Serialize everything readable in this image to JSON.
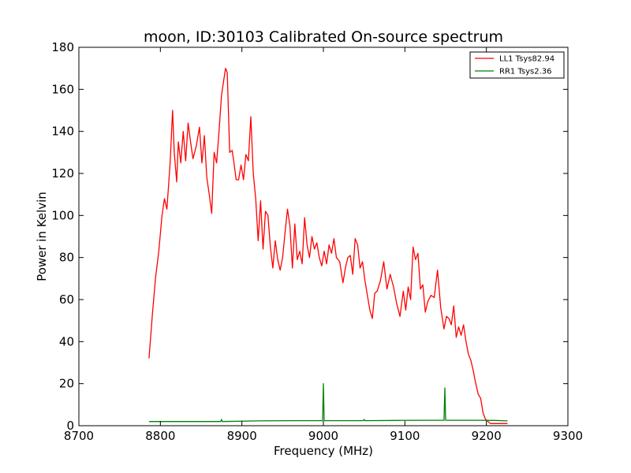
{
  "chart_data": {
    "type": "line",
    "title": "moon, ID:30103 Calibrated On-source spectrum",
    "xlabel": "Frequency (MHz)",
    "ylabel": "Power in Kelvin",
    "xlim": [
      8700,
      9300
    ],
    "ylim": [
      0,
      180
    ],
    "xticks": [
      8700,
      8800,
      8900,
      9000,
      9100,
      9200,
      9300
    ],
    "yticks": [
      0,
      20,
      40,
      60,
      80,
      100,
      120,
      140,
      160,
      180
    ],
    "grid": false,
    "legend_position": "top-right",
    "series": [
      {
        "name": "LL1 Tsys82.94",
        "color": "#ff0000",
        "x": [
          8786,
          8790,
          8794,
          8798,
          8802,
          8805,
          8808,
          8812,
          8815,
          8817,
          8820,
          8822,
          8825,
          8828,
          8831,
          8834,
          8837,
          8840,
          8844,
          8848,
          8851,
          8854,
          8857,
          8860,
          8863,
          8866,
          8869,
          8872,
          8875,
          8878,
          8880,
          8882,
          8885,
          8888,
          8890,
          8893,
          8896,
          8899,
          8902,
          8905,
          8908,
          8911,
          8914,
          8917,
          8920,
          8923,
          8926,
          8929,
          8932,
          8935,
          8938,
          8941,
          8944,
          8947,
          8950,
          8953,
          8956,
          8959,
          8962,
          8965,
          8968,
          8971,
          8974,
          8977,
          8980,
          8983,
          8986,
          8989,
          8992,
          8995,
          8998,
          9001,
          9004,
          9007,
          9010,
          9013,
          9016,
          9020,
          9024,
          9027,
          9030,
          9033,
          9036,
          9039,
          9042,
          9045,
          9048,
          9051,
          9054,
          9057,
          9060,
          9063,
          9066,
          9070,
          9074,
          9078,
          9082,
          9086,
          9090,
          9094,
          9098,
          9101,
          9104,
          9107,
          9110,
          9113,
          9116,
          9119,
          9122,
          9125,
          9128,
          9132,
          9136,
          9140,
          9144,
          9148,
          9151,
          9154,
          9157,
          9160,
          9163,
          9166,
          9169,
          9172,
          9175,
          9178,
          9181,
          9184,
          9187,
          9190,
          9193,
          9196,
          9199,
          9202,
          9205,
          9208,
          9211,
          9214,
          9217,
          9220,
          9223,
          9226
        ],
        "y": [
          32,
          52,
          70,
          83,
          100,
          108,
          103,
          125,
          150,
          130,
          116,
          135,
          125,
          140,
          126,
          144,
          135,
          127,
          133,
          142,
          125,
          138,
          118,
          110,
          101,
          130,
          125,
          140,
          157,
          165,
          170,
          168,
          130,
          131,
          126,
          117,
          117,
          124,
          117,
          129,
          126,
          147,
          120,
          108,
          88,
          107,
          84,
          102,
          100,
          85,
          75,
          88,
          79,
          74,
          80,
          92,
          103,
          95,
          75,
          96,
          79,
          83,
          77,
          99,
          86,
          80,
          90,
          84,
          87,
          80,
          76,
          83,
          77,
          86,
          82,
          89,
          80,
          78,
          68,
          75,
          80,
          81,
          72,
          89,
          86,
          75,
          78,
          69,
          62,
          55,
          51,
          63,
          64,
          69,
          78,
          65,
          72,
          66,
          58,
          52,
          64,
          55,
          66,
          60,
          85,
          79,
          82,
          65,
          67,
          54,
          59,
          62,
          61,
          74,
          56,
          46,
          52,
          51,
          48,
          57,
          42,
          47,
          43,
          48,
          40,
          34,
          31,
          26,
          20,
          15,
          13,
          6,
          3,
          2,
          1,
          1,
          1,
          1,
          1,
          1,
          1,
          1
        ]
      },
      {
        "name": "RR1 Tsys2.36",
        "color": "#008000",
        "x": [
          8786,
          8830,
          8874,
          8875,
          8876,
          8920,
          8960,
          8999,
          9000,
          9001,
          9002,
          9040,
          9049,
          9050,
          9051,
          9090,
          9130,
          9148,
          9149,
          9150,
          9151,
          9152,
          9190,
          9210,
          9226
        ],
        "y": [
          2,
          2,
          2,
          3,
          2,
          2.3,
          2.4,
          2.4,
          20,
          2.4,
          2.4,
          2.4,
          2.4,
          3,
          2.4,
          2.5,
          2.6,
          2.6,
          18,
          2.6,
          2.6,
          2.6,
          2.6,
          2.5,
          2.3
        ]
      }
    ]
  }
}
